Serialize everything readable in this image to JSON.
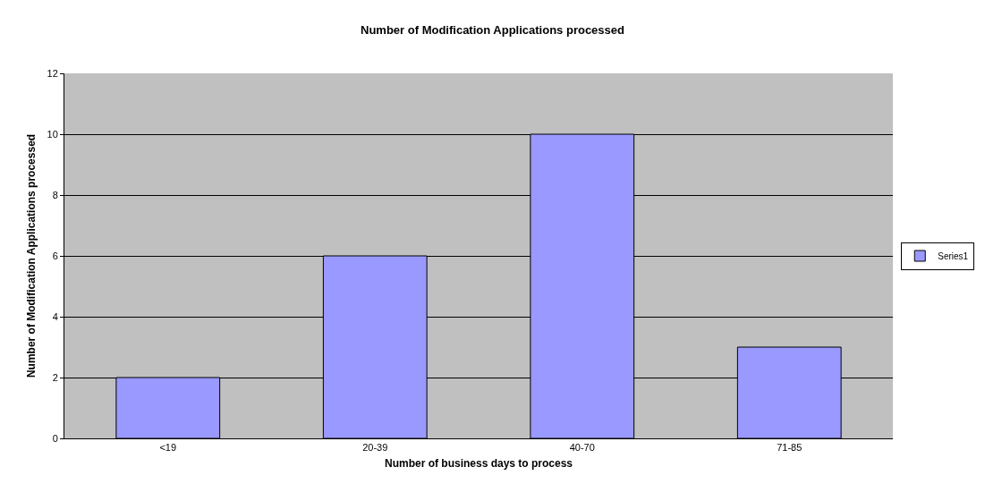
{
  "chart_data": {
    "type": "bar",
    "title": "Number of Modification Applications processed",
    "xlabel": "Number of business days to process",
    "ylabel": "Number of Modification Applications processed",
    "categories": [
      "<19",
      "20-39",
      "40-70",
      "71-85"
    ],
    "series": [
      {
        "name": "Series1",
        "color": "#9999ff",
        "values": [
          2,
          6,
          10,
          3
        ]
      }
    ],
    "ylim": [
      0,
      12
    ],
    "yticks": [
      0,
      2,
      4,
      6,
      8,
      10,
      12
    ],
    "grid": "y",
    "legend": "right"
  }
}
